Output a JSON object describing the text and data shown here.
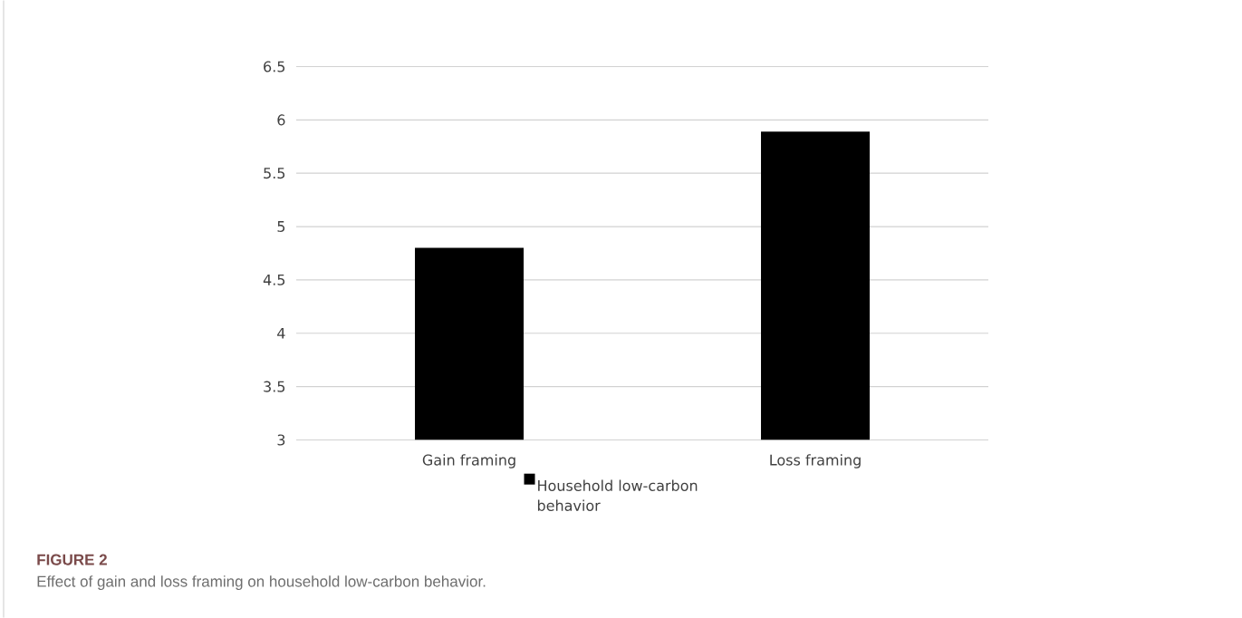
{
  "chart_data": {
    "type": "bar",
    "categories": [
      "Gain framing",
      "Loss framing"
    ],
    "series": [
      {
        "name": "Household low-carbon behavior",
        "color": "#000000",
        "values": [
          4.8,
          5.89
        ]
      }
    ],
    "ylim": [
      3,
      6.5
    ],
    "yticks": [
      3,
      3.5,
      4,
      4.5,
      5,
      5.5,
      6,
      6.5
    ],
    "grid": "y",
    "legend": "bottom",
    "annotations": [
      "FIGURE 2",
      "Effect of gain and loss framing on household low-carbon behavior."
    ]
  }
}
